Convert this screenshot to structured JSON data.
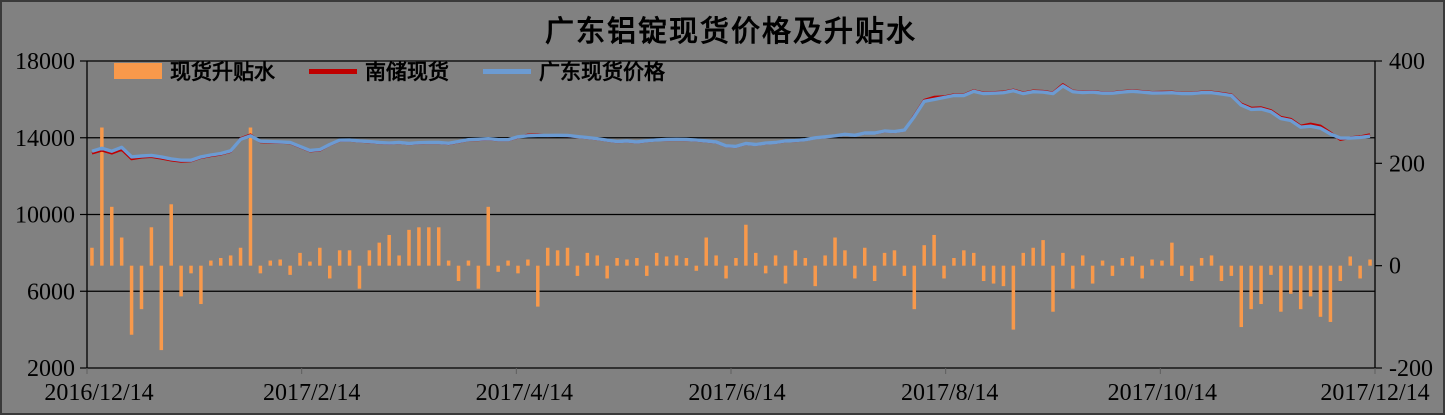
{
  "chart_data": {
    "type": "bar+line combo",
    "title": "广东铝锭现货价格及升贴水",
    "background_color": "#818181",
    "x_tick_labels": [
      "2016/12/14",
      "2017/2/14",
      "2017/4/14",
      "2017/6/14",
      "2017/8/14",
      "2017/10/14",
      "2017/12/14"
    ],
    "left_axis": {
      "ticks": [
        "18000",
        "14000",
        "10000",
        "6000",
        "2000"
      ],
      "range": [
        2000,
        18000
      ],
      "gridlines": true
    },
    "right_axis": {
      "ticks": [
        "400",
        "200",
        "0",
        "-200"
      ],
      "range": [
        -200,
        400
      ],
      "gridlines": false
    },
    "legend_position": "top-left-inside",
    "series": [
      {
        "name": "现货升贴水",
        "type": "bar",
        "axis": "right",
        "color": "#F8994B",
        "values": [
          35,
          270,
          115,
          55,
          -135,
          -85,
          75,
          -165,
          120,
          -60,
          -15,
          -75,
          10,
          15,
          20,
          35,
          270,
          -15,
          10,
          12,
          -18,
          25,
          8,
          35,
          -25,
          30,
          30,
          -45,
          30,
          45,
          60,
          20,
          70,
          75,
          75,
          75,
          10,
          -30,
          10,
          -45,
          115,
          -12,
          10,
          -15,
          12,
          -80,
          35,
          30,
          35,
          -20,
          25,
          20,
          -25,
          15,
          12,
          15,
          -20,
          25,
          18,
          20,
          15,
          -10,
          55,
          20,
          -25,
          15,
          80,
          25,
          -15,
          20,
          -35,
          30,
          15,
          -40,
          20,
          55,
          30,
          -25,
          35,
          -30,
          25,
          30,
          -20,
          -85,
          40,
          60,
          -25,
          15,
          30,
          25,
          -30,
          -35,
          -40,
          -125,
          25,
          35,
          50,
          -90,
          25,
          -45,
          20,
          -35,
          10,
          -20,
          15,
          18,
          -25,
          12,
          10,
          45,
          -20,
          -30,
          15,
          20,
          -30,
          -20,
          -120,
          -85,
          -75,
          -18,
          -90,
          -55,
          -85,
          -60,
          -100,
          -110,
          -30,
          18,
          -25,
          12
        ]
      },
      {
        "name": "南储现货",
        "type": "line",
        "axis": "left",
        "color": "#C00000",
        "values": [
          13190,
          13340,
          13190,
          13390,
          12890,
          12980,
          13010,
          12930,
          12830,
          12760,
          12790,
          12960,
          13060,
          13140,
          13280,
          13960,
          14160,
          13785,
          13765,
          13745,
          13725,
          13515,
          13305,
          13345,
          13625,
          13845,
          13855,
          13805,
          13775,
          13725,
          13695,
          13735,
          13675,
          13715,
          13735,
          13725,
          13685,
          13775,
          13875,
          13895,
          13925,
          13875,
          13875,
          14020,
          14150,
          14160,
          14100,
          14110,
          14100,
          14040,
          13990,
          13930,
          13850,
          13780,
          13810,
          13760,
          13820,
          13870,
          13890,
          13900,
          13890,
          13860,
          13810,
          13760,
          13560,
          13530,
          13680,
          13635,
          13705,
          13735,
          13815,
          13835,
          13885,
          13985,
          14035,
          14085,
          14165,
          14115,
          14235,
          14235,
          14335,
          14305,
          14385,
          15160,
          15960,
          16120,
          16145,
          16245,
          16245,
          16465,
          16345,
          16365,
          16395,
          16495,
          16345,
          16445,
          16425,
          16345,
          16780,
          16440,
          16400,
          16420,
          16360,
          16360,
          16420,
          16460,
          16420,
          16370,
          16380,
          16390,
          16340,
          16340,
          16390,
          16390,
          16320,
          16250,
          15770,
          15550,
          15570,
          15420,
          15070,
          14970,
          14620,
          14720,
          14620,
          14270,
          13900,
          14010,
          14060,
          14170
        ]
      },
      {
        "name": "广东现货价格",
        "type": "line",
        "axis": "left",
        "color": "#6C9BD2",
        "values": [
          13300,
          13450,
          13300,
          13500,
          13000,
          13050,
          13080,
          13000,
          12900,
          12830,
          12830,
          13000,
          13100,
          13180,
          13320,
          13920,
          14100,
          13820,
          13800,
          13780,
          13760,
          13550,
          13340,
          13380,
          13650,
          13870,
          13880,
          13830,
          13800,
          13750,
          13720,
          13760,
          13700,
          13740,
          13760,
          13750,
          13710,
          13800,
          13900,
          13920,
          13950,
          13900,
          13900,
          14050,
          14100,
          14120,
          14120,
          14130,
          14120,
          14060,
          14010,
          13950,
          13870,
          13800,
          13830,
          13780,
          13840,
          13890,
          13910,
          13920,
          13910,
          13880,
          13830,
          13780,
          13580,
          13550,
          13700,
          13650,
          13720,
          13750,
          13830,
          13850,
          13900,
          14000,
          14050,
          14100,
          14180,
          14130,
          14250,
          14250,
          14350,
          14320,
          14400,
          15100,
          15900,
          16000,
          16100,
          16200,
          16200,
          16420,
          16300,
          16320,
          16350,
          16450,
          16300,
          16400,
          16380,
          16300,
          16700,
          16400,
          16360,
          16380,
          16320,
          16320,
          16380,
          16420,
          16380,
          16330,
          16340,
          16350,
          16300,
          16300,
          16350,
          16350,
          16280,
          16200,
          15700,
          15480,
          15500,
          15350,
          15000,
          14900,
          14550,
          14600,
          14500,
          14200,
          13980,
          13980,
          14020,
          14080
        ]
      }
    ]
  }
}
